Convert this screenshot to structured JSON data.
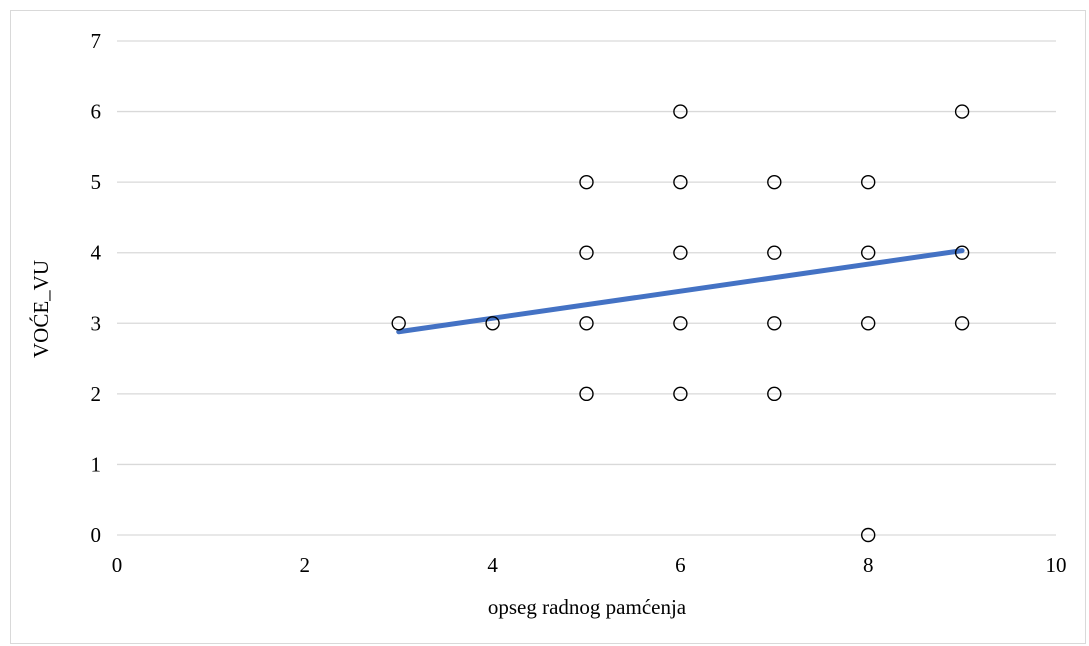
{
  "chart_data": {
    "type": "scatter",
    "title": "",
    "xlabel": "opseg radnog pamćenja",
    "ylabel": "VOĆE_VU",
    "xlim": [
      0,
      10
    ],
    "ylim": [
      0,
      7
    ],
    "x_ticks": [
      "0",
      "2",
      "4",
      "6",
      "8",
      "10"
    ],
    "y_ticks": [
      "0",
      "1",
      "2",
      "3",
      "4",
      "5",
      "6",
      "7"
    ],
    "grid": "horizontal",
    "legend": "none",
    "series": [
      {
        "marker": "hollow-circle",
        "points": [
          {
            "x": 3,
            "y": 3
          },
          {
            "x": 4,
            "y": 3
          },
          {
            "x": 5,
            "y": 2
          },
          {
            "x": 5,
            "y": 3
          },
          {
            "x": 5,
            "y": 4
          },
          {
            "x": 5,
            "y": 5
          },
          {
            "x": 6,
            "y": 2
          },
          {
            "x": 6,
            "y": 3
          },
          {
            "x": 6,
            "y": 4
          },
          {
            "x": 6,
            "y": 5
          },
          {
            "x": 6,
            "y": 6
          },
          {
            "x": 7,
            "y": 2
          },
          {
            "x": 7,
            "y": 3
          },
          {
            "x": 7,
            "y": 4
          },
          {
            "x": 7,
            "y": 5
          },
          {
            "x": 8,
            "y": 0
          },
          {
            "x": 8,
            "y": 3
          },
          {
            "x": 8,
            "y": 4
          },
          {
            "x": 8,
            "y": 5
          },
          {
            "x": 9,
            "y": 3
          },
          {
            "x": 9,
            "y": 4
          },
          {
            "x": 9,
            "y": 6
          }
        ]
      }
    ],
    "trendline": {
      "type": "linear",
      "x_range": [
        3,
        9
      ],
      "y_start": 2.88,
      "y_end": 4.03
    },
    "colors": {
      "trendline": "#4472c4",
      "grid": "#d9d9d9",
      "marker_stroke": "#000000",
      "marker_fill": "#ffffff"
    }
  }
}
